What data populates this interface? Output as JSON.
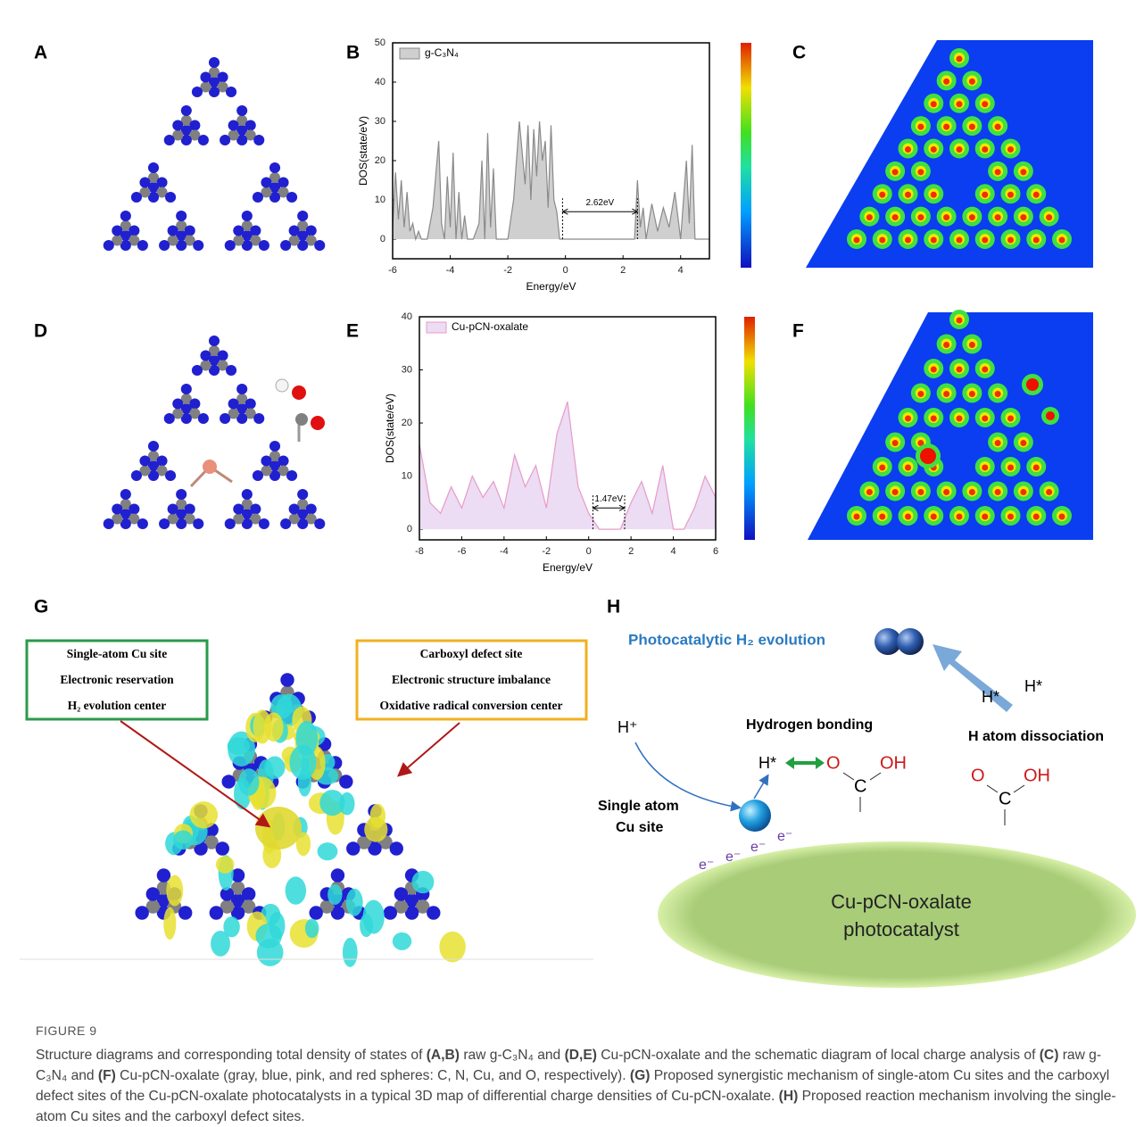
{
  "panel_labels": [
    "A",
    "B",
    "C",
    "D",
    "E",
    "F",
    "G",
    "H"
  ],
  "chart_data": [
    {
      "type": "area",
      "xlabel": "Energy/eV",
      "ylabel": "DOS(state/eV)",
      "xlim": [
        -6,
        5
      ],
      "ylim": [
        -5,
        50
      ],
      "xticks": [
        -6,
        -4,
        -2,
        0,
        2,
        4
      ],
      "yticks": [
        0,
        10,
        20,
        30,
        40,
        50
      ],
      "x": [
        -6,
        -5.9,
        -5.8,
        -5.7,
        -5.6,
        -5.5,
        -5.4,
        -5.3,
        -5.2,
        -5.1,
        -5.0,
        -4.8,
        -4.6,
        -4.4,
        -4.3,
        -4.2,
        -4.1,
        -4.0,
        -3.9,
        -3.8,
        -3.7,
        -3.6,
        -3.5,
        -3.4,
        -3.2,
        -3.0,
        -2.9,
        -2.8,
        -2.7,
        -2.6,
        -2.5,
        -2.4,
        -2.2,
        -2.0,
        -1.8,
        -1.6,
        -1.4,
        -1.3,
        -1.2,
        -1.1,
        -1.0,
        -0.9,
        -0.8,
        -0.7,
        -0.6,
        -0.5,
        -0.4,
        -0.3,
        -0.2,
        -0.1,
        0,
        0.5,
        1,
        1.5,
        2,
        2.4,
        2.5,
        2.6,
        2.7,
        2.8,
        3.0,
        3.2,
        3.4,
        3.6,
        3.8,
        4.0,
        4.2,
        4.3,
        4.4,
        4.5,
        5
      ],
      "series": [
        {
          "name": "g-C₃N₄",
          "color": "#8a8a8a",
          "fill": "#cfcfcf",
          "values": [
            3,
            17,
            5,
            15,
            3,
            12,
            2,
            4,
            0,
            2,
            0,
            0,
            8,
            25,
            4,
            0,
            16,
            3,
            22,
            0,
            12,
            0,
            6,
            0,
            0,
            4,
            20,
            0,
            27,
            3,
            18,
            0,
            0,
            0,
            10,
            30,
            14,
            29,
            10,
            28,
            16,
            30,
            20,
            25,
            8,
            29,
            10,
            7,
            0,
            0,
            0,
            0,
            0,
            0,
            0,
            0,
            15,
            3,
            8,
            0,
            9,
            2,
            8,
            3,
            12,
            0,
            20,
            4,
            24,
            0,
            0
          ]
        }
      ],
      "annotation": {
        "text": "2.62eV",
        "x": [
          -0.1,
          2.5
        ],
        "y": 7
      }
    },
    {
      "type": "area",
      "xlabel": "Energy/eV",
      "ylabel": "DOS(state/eV)",
      "xlim": [
        -8,
        6
      ],
      "ylim": [
        -2,
        40
      ],
      "xticks": [
        -8,
        -6,
        -4,
        -2,
        0,
        2,
        4,
        6
      ],
      "yticks": [
        0,
        10,
        20,
        30,
        40
      ],
      "x": [
        -8,
        -7.5,
        -7,
        -6.5,
        -6,
        -5.5,
        -5,
        -4.5,
        -4,
        -3.5,
        -3,
        -2.5,
        -2,
        -1.5,
        -1,
        -0.5,
        0,
        0.5,
        1,
        1.5,
        2,
        2.5,
        3,
        3.5,
        4,
        4.5,
        5,
        5.5,
        6
      ],
      "series": [
        {
          "name": "Cu-pCN-oxalate",
          "color": "#e89ac8",
          "fill": "#ecdcf4",
          "values": [
            16,
            5,
            3,
            8,
            4,
            10,
            6,
            9,
            4,
            14,
            8,
            12,
            4,
            18,
            24,
            8,
            3,
            0,
            0,
            0,
            5,
            9,
            3,
            12,
            0,
            0,
            4,
            10,
            6
          ]
        }
      ],
      "annotation": {
        "text": "1.47eV",
        "x": [
          0.2,
          1.7
        ],
        "y": 4
      }
    }
  ],
  "panel_g": {
    "left_box": [
      "Single-atom Cu site",
      "Electronic reservation",
      "H₂ evolution center"
    ],
    "right_box": [
      "Carboxyl defect site",
      "Electronic structure imbalance",
      "Oxidative radical conversion center"
    ]
  },
  "panel_h": {
    "title": "Photocatalytic H₂ evolution",
    "h_star_1": "H*",
    "h_star_2": "H*",
    "h_plus": "H⁺",
    "hydrogen_bonding": "Hydrogen bonding",
    "dissociation": "H atom dissociation",
    "h_star_3": "H*",
    "carboxyl_1": {
      "o": "O",
      "oh": "OH",
      "c": "C"
    },
    "carboxyl_2": {
      "o": "O",
      "oh": "OH",
      "c": "C"
    },
    "cu_site": [
      "Single atom",
      "Cu site"
    ],
    "electrons": [
      "e⁻",
      "e⁻",
      "e⁻",
      "e⁻"
    ],
    "catalyst": [
      "Cu-pCN-oxalate",
      "photocatalyst"
    ]
  },
  "caption": {
    "label": "FIGURE 9",
    "segments": [
      {
        "text": "Structure diagrams and corresponding total density of states of ",
        "bold": false
      },
      {
        "text": "(A,B)",
        "bold": true
      },
      {
        "text": " raw g-C₃N₄ and ",
        "bold": false
      },
      {
        "text": "(D,E)",
        "bold": true
      },
      {
        "text": " Cu-pCN-oxalate and the schematic diagram of local charge analysis of ",
        "bold": false
      },
      {
        "text": "(C)",
        "bold": true
      },
      {
        "text": " raw g-C₃N₄ and ",
        "bold": false
      },
      {
        "text": "(F)",
        "bold": true
      },
      {
        "text": " Cu-pCN-oxalate (gray, blue, pink, and red spheres: C, N, Cu, and O, respectively). ",
        "bold": false
      },
      {
        "text": "(G)",
        "bold": true
      },
      {
        "text": " Proposed synergistic mechanism of single-atom Cu sites and the carboxyl defect sites of the Cu-pCN-oxalate photocatalysts in a typical 3D map of differential charge densities of Cu-pCN-oxalate. ",
        "bold": false
      },
      {
        "text": "(H)",
        "bold": true
      },
      {
        "text": " Proposed reaction mechanism involving the single-atom Cu sites and the carboxyl defect sites.",
        "bold": false
      }
    ]
  }
}
